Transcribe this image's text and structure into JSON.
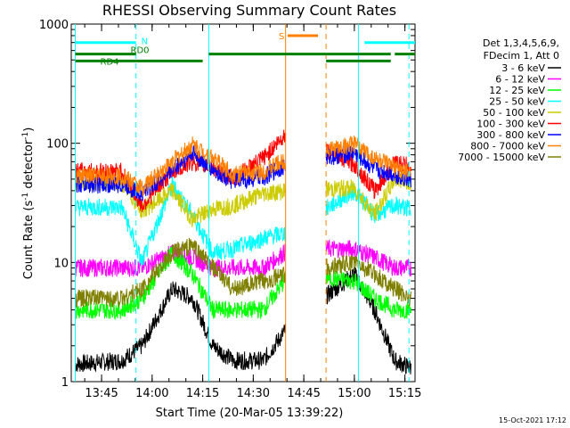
{
  "chart_data": {
    "type": "line",
    "title": "RHESSI Observing Summary Count Rates",
    "xlabel": "Start Time (20-Mar-05 13:39:22)",
    "ylabel_main": "Count Rate (s",
    "ylabel_sup": "-1",
    "ylabel_mid": " detector",
    "ylabel_end": ")",
    "y_scale": "log",
    "ylim": [
      1,
      1000
    ],
    "xlim_minutes": [
      13.6,
      15.3
    ],
    "x_ticks": [
      {
        "m": 13.75,
        "label": "13:45"
      },
      {
        "m": 14.0,
        "label": "14:00"
      },
      {
        "m": 14.25,
        "label": "14:15"
      },
      {
        "m": 14.5,
        "label": "14:30"
      },
      {
        "m": 14.75,
        "label": "14:45"
      },
      {
        "m": 15.0,
        "label": "15:00"
      },
      {
        "m": 15.25,
        "label": "15:15"
      }
    ],
    "y_ticks": [
      {
        "v": 1,
        "label": "1"
      },
      {
        "v": 10,
        "label": "10"
      },
      {
        "v": 100,
        "label": "100"
      },
      {
        "v": 1000,
        "label": "1000"
      }
    ],
    "legend_header": [
      "Det 1,3,4,5,6,9,",
      "FDecim 1, Att 0"
    ],
    "legend_placement": "right",
    "series": [
      {
        "name": "3 - 6 keV",
        "color": "#000000",
        "points": [
          [
            13.62,
            1.4
          ],
          [
            13.85,
            1.5
          ],
          [
            13.95,
            2
          ],
          [
            14.1,
            6
          ],
          [
            14.2,
            5
          ],
          [
            14.3,
            2
          ],
          [
            14.4,
            1.5
          ],
          [
            14.55,
            1.5
          ],
          [
            14.68,
            3
          ],
          [
            15.0,
            8
          ],
          [
            15.1,
            4
          ],
          [
            15.2,
            1.5
          ],
          [
            15.28,
            1.3
          ]
        ]
      },
      {
        "name": "6 - 12 keV",
        "color": "#ff00ff",
        "points": [
          [
            13.62,
            9
          ],
          [
            13.85,
            9
          ],
          [
            13.95,
            9
          ],
          [
            14.1,
            12
          ],
          [
            14.2,
            11
          ],
          [
            14.3,
            9
          ],
          [
            14.4,
            9
          ],
          [
            14.55,
            9
          ],
          [
            14.68,
            13
          ],
          [
            15.0,
            13
          ],
          [
            15.1,
            11
          ],
          [
            15.2,
            9
          ],
          [
            15.28,
            9
          ]
        ]
      },
      {
        "name": "12 - 25 keV",
        "color": "#00ff00",
        "points": [
          [
            13.62,
            4
          ],
          [
            13.85,
            4
          ],
          [
            13.95,
            5
          ],
          [
            14.1,
            12
          ],
          [
            14.2,
            8
          ],
          [
            14.3,
            4
          ],
          [
            14.4,
            4
          ],
          [
            14.55,
            4
          ],
          [
            14.68,
            8
          ],
          [
            15.0,
            7
          ],
          [
            15.1,
            5
          ],
          [
            15.2,
            4
          ],
          [
            15.28,
            4
          ]
        ]
      },
      {
        "name": "25 - 50 keV",
        "color": "#00ffff",
        "points": [
          [
            13.62,
            29
          ],
          [
            13.85,
            29
          ],
          [
            13.95,
            10
          ],
          [
            14.1,
            45
          ],
          [
            14.2,
            25
          ],
          [
            14.3,
            12
          ],
          [
            14.4,
            13
          ],
          [
            14.55,
            16
          ],
          [
            14.68,
            18
          ],
          [
            15.0,
            40
          ],
          [
            15.1,
            25
          ],
          [
            15.2,
            30
          ],
          [
            15.28,
            28
          ]
        ]
      },
      {
        "name": "50 - 100 keV",
        "color": "#cccc00",
        "points": [
          [
            13.62,
            47
          ],
          [
            13.85,
            47
          ],
          [
            13.95,
            27
          ],
          [
            14.1,
            40
          ],
          [
            14.2,
            23
          ],
          [
            14.3,
            28
          ],
          [
            14.4,
            30
          ],
          [
            14.55,
            38
          ],
          [
            14.68,
            40
          ],
          [
            15.0,
            42
          ],
          [
            15.1,
            25
          ],
          [
            15.2,
            50
          ],
          [
            15.28,
            48
          ]
        ]
      },
      {
        "name": "100 - 300 keV",
        "color": "#ff0000",
        "points": [
          [
            13.62,
            58
          ],
          [
            13.85,
            58
          ],
          [
            13.95,
            30
          ],
          [
            14.1,
            58
          ],
          [
            14.2,
            70
          ],
          [
            14.3,
            62
          ],
          [
            14.4,
            50
          ],
          [
            14.55,
            75
          ],
          [
            14.68,
            130
          ],
          [
            15.0,
            66
          ],
          [
            15.1,
            40
          ],
          [
            15.2,
            68
          ],
          [
            15.28,
            65
          ]
        ]
      },
      {
        "name": "300 - 800 keV",
        "color": "#0000ff",
        "points": [
          [
            13.62,
            45
          ],
          [
            13.85,
            45
          ],
          [
            13.95,
            38
          ],
          [
            14.1,
            60
          ],
          [
            14.2,
            83
          ],
          [
            14.3,
            60
          ],
          [
            14.4,
            48
          ],
          [
            14.55,
            52
          ],
          [
            14.68,
            68
          ],
          [
            15.0,
            83
          ],
          [
            15.1,
            60
          ],
          [
            15.2,
            55
          ],
          [
            15.28,
            48
          ]
        ]
      },
      {
        "name": "800 - 7000 keV",
        "color": "#ff8000",
        "points": [
          [
            13.62,
            53
          ],
          [
            13.85,
            53
          ],
          [
            13.95,
            42
          ],
          [
            14.1,
            70
          ],
          [
            14.2,
            97
          ],
          [
            14.3,
            75
          ],
          [
            14.4,
            55
          ],
          [
            14.55,
            58
          ],
          [
            14.68,
            75
          ],
          [
            15.0,
            98
          ],
          [
            15.1,
            75
          ],
          [
            15.2,
            62
          ],
          [
            15.28,
            55
          ]
        ]
      },
      {
        "name": "7000 - 15000 keV",
        "color": "#808000",
        "points": [
          [
            13.62,
            5
          ],
          [
            13.85,
            5
          ],
          [
            13.95,
            6
          ],
          [
            14.1,
            12
          ],
          [
            14.2,
            14
          ],
          [
            14.3,
            9
          ],
          [
            14.4,
            6
          ],
          [
            14.55,
            7
          ],
          [
            14.68,
            8
          ],
          [
            15.0,
            10
          ],
          [
            15.1,
            8
          ],
          [
            15.2,
            6
          ],
          [
            15.28,
            5
          ]
        ]
      }
    ],
    "gaps": [
      [
        14.66,
        14.86
      ]
    ],
    "state_bars": [
      {
        "label": "N",
        "color": "#00ffff",
        "level": 700,
        "ranges": [
          [
            13.62,
            13.92
          ],
          [
            15.05,
            15.3
          ]
        ]
      },
      {
        "label": "RD0",
        "color": "#008000",
        "level": 560,
        "ranges": [
          [
            13.62,
            13.92
          ],
          [
            14.28,
            14.86
          ],
          [
            14.86,
            15.18
          ],
          [
            15.2,
            15.3
          ]
        ]
      },
      {
        "label": "RD4",
        "color": "#008000",
        "level": 490,
        "ranges": [
          [
            13.62,
            13.82
          ],
          [
            13.82,
            14.25
          ],
          [
            14.86,
            15.18
          ]
        ]
      },
      {
        "label": "S",
        "color": "#ff8000",
        "level": 800,
        "ranges": [
          [
            14.67,
            14.82
          ]
        ]
      }
    ],
    "vertical_lines": [
      {
        "m": 13.62,
        "color": "#00ffff",
        "style": "solid"
      },
      {
        "m": 13.92,
        "color": "#00ffff",
        "style": "dashed"
      },
      {
        "m": 14.28,
        "color": "#00ffff",
        "style": "solid"
      },
      {
        "m": 14.66,
        "color": "#ff8000",
        "style": "solid"
      },
      {
        "m": 14.86,
        "color": "#ff8000",
        "style": "dashed"
      },
      {
        "m": 15.02,
        "color": "#00ffff",
        "style": "solid"
      },
      {
        "m": 15.27,
        "color": "#00ffff",
        "style": "dashed"
      }
    ],
    "stamp": "15-Oct-2021 17:12"
  }
}
